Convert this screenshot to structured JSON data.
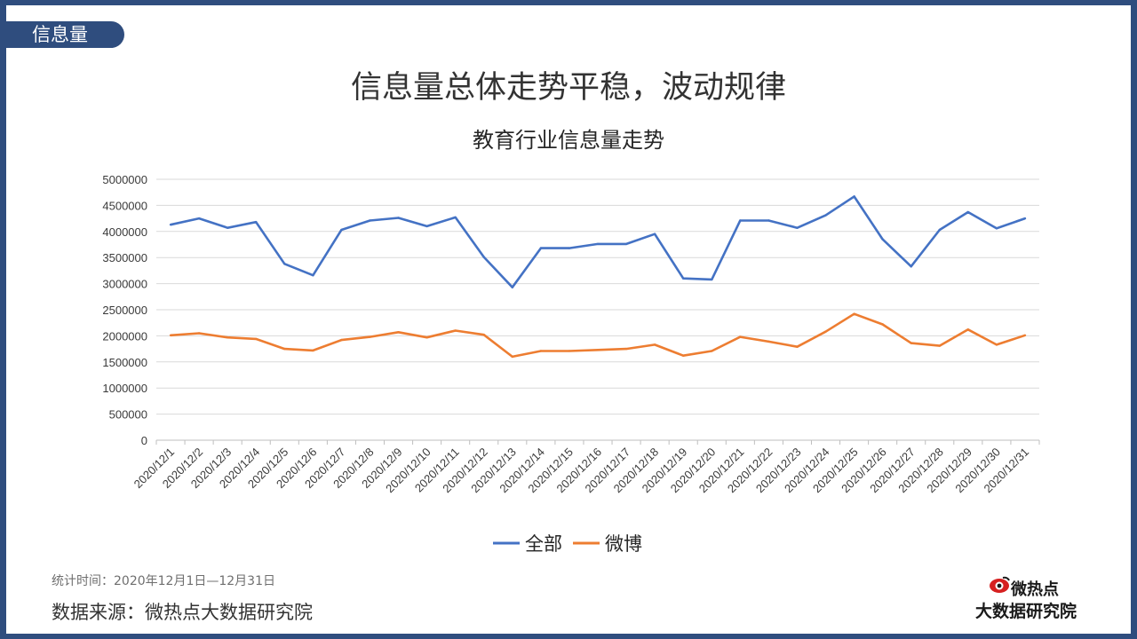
{
  "section_tab": "信息量",
  "headline": "信息量总体走势平稳，波动规律",
  "colors": {
    "series_all": "#4472c4",
    "series_weibo": "#ed7d31",
    "frame": "#2f4d7e",
    "grid": "#d9d9d9"
  },
  "chart_data": {
    "type": "line",
    "title": "教育行业信息量走势",
    "categories": [
      "2020/12/1",
      "2020/12/2",
      "2020/12/3",
      "2020/12/4",
      "2020/12/5",
      "2020/12/6",
      "2020/12/7",
      "2020/12/8",
      "2020/12/9",
      "2020/12/10",
      "2020/12/11",
      "2020/12/12",
      "2020/12/13",
      "2020/12/14",
      "2020/12/15",
      "2020/12/16",
      "2020/12/17",
      "2020/12/18",
      "2020/12/19",
      "2020/12/20",
      "2020/12/21",
      "2020/12/22",
      "2020/12/23",
      "2020/12/24",
      "2020/12/25",
      "2020/12/26",
      "2020/12/27",
      "2020/12/28",
      "2020/12/29",
      "2020/12/30",
      "2020/12/31"
    ],
    "y_ticks": [
      "0",
      "500000",
      "1000000",
      "1500000",
      "2000000",
      "2500000",
      "3000000",
      "3500000",
      "4000000",
      "4500000",
      "5000000"
    ],
    "ylim": [
      0,
      5000000
    ],
    "grid": true,
    "legend_position": "bottom",
    "series": [
      {
        "name": "全部",
        "color": "#4472c4",
        "values": [
          4130000,
          4250000,
          4070000,
          4180000,
          3380000,
          3160000,
          4030000,
          4210000,
          4260000,
          4100000,
          4270000,
          3510000,
          2930000,
          3680000,
          3680000,
          3760000,
          3760000,
          3950000,
          3100000,
          3080000,
          4210000,
          4210000,
          4070000,
          4310000,
          4670000,
          3850000,
          3330000,
          4030000,
          4370000,
          4060000,
          4250000
        ]
      },
      {
        "name": "微博",
        "color": "#ed7d31",
        "values": [
          2010000,
          2050000,
          1970000,
          1940000,
          1750000,
          1720000,
          1920000,
          1980000,
          2070000,
          1970000,
          2100000,
          2020000,
          1600000,
          1710000,
          1710000,
          1730000,
          1750000,
          1830000,
          1620000,
          1710000,
          1980000,
          1890000,
          1790000,
          2080000,
          2420000,
          2220000,
          1860000,
          1810000,
          2120000,
          1830000,
          2010000
        ]
      }
    ]
  },
  "footer": {
    "stat_time": "统计时间：2020年12月1日—12月31日",
    "source": "数据来源：微热点大数据研究院"
  },
  "logo": {
    "line1": "微热点",
    "line2": "大数据研究院",
    "icon": "eye-icon"
  }
}
